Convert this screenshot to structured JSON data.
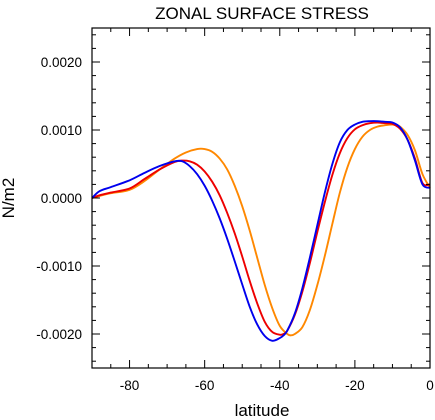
{
  "chart_data": {
    "type": "line",
    "title": "ZONAL SURFACE STRESS",
    "xlabel": "latitude",
    "ylabel": "N/m2",
    "xlim": [
      -90,
      0
    ],
    "ylim": [
      -0.0025,
      0.0025
    ],
    "x_ticks": [
      {
        "value": -80,
        "label": "-80"
      },
      {
        "value": -60,
        "label": "-60"
      },
      {
        "value": -40,
        "label": "-40"
      },
      {
        "value": -20,
        "label": "-20"
      },
      {
        "value": 0,
        "label": "0"
      }
    ],
    "y_ticks": [
      {
        "value": -0.002,
        "label": "-0.0020"
      },
      {
        "value": -0.001,
        "label": "-0.0010"
      },
      {
        "value": 0.0,
        "label": "0.0000"
      },
      {
        "value": 0.001,
        "label": "0.0010"
      },
      {
        "value": 0.002,
        "label": "0.0020"
      }
    ],
    "grid": false,
    "series": [
      {
        "color": "#ff8800",
        "x": [
          -90,
          -88,
          -85,
          -80,
          -76,
          -72,
          -68,
          -65,
          -62,
          -60,
          -58,
          -56,
          -54,
          -52,
          -50,
          -48,
          -46,
          -44,
          -42,
          -40,
          -38,
          -37,
          -36,
          -34,
          -32,
          -30,
          -28,
          -26,
          -24,
          -22,
          -20,
          -18,
          -16,
          -14,
          -12,
          -10,
          -9,
          -8,
          -6,
          -4,
          -2,
          0
        ],
        "y": [
          0.0,
          3e-05,
          7e-05,
          0.00012,
          0.00025,
          0.00042,
          0.00058,
          0.00067,
          0.00072,
          0.00072,
          0.00068,
          0.00058,
          0.00042,
          0.00018,
          -0.00012,
          -0.00048,
          -0.00088,
          -0.00128,
          -0.00162,
          -0.00188,
          -0.002,
          -0.00202,
          -0.002,
          -0.0019,
          -0.00165,
          -0.00128,
          -0.00085,
          -0.00038,
          8e-05,
          0.00045,
          0.00072,
          0.0009,
          0.001,
          0.00105,
          0.00107,
          0.00108,
          0.00107,
          0.00105,
          0.00093,
          0.0007,
          0.00035,
          0.00015
        ]
      },
      {
        "color": "#ee0000",
        "x": [
          -90,
          -88,
          -85,
          -80,
          -76,
          -72,
          -68,
          -66,
          -64,
          -62,
          -60,
          -58,
          -56,
          -54,
          -52,
          -50,
          -48,
          -46,
          -44,
          -42,
          -40,
          -39,
          -38,
          -36,
          -34,
          -32,
          -30,
          -28,
          -26,
          -24,
          -22,
          -20,
          -18,
          -16,
          -14,
          -12,
          -10,
          -8,
          -6,
          -4,
          -2,
          0
        ],
        "y": [
          0.0,
          4e-05,
          8e-05,
          0.00014,
          0.00028,
          0.00042,
          0.00053,
          0.00055,
          0.00054,
          0.00049,
          0.00039,
          0.00024,
          4e-05,
          -0.00022,
          -0.00052,
          -0.00086,
          -0.00122,
          -0.00155,
          -0.00182,
          -0.00197,
          -0.00201,
          -0.002,
          -0.00195,
          -0.00172,
          -0.00138,
          -0.00096,
          -0.0005,
          -6e-05,
          0.00034,
          0.00066,
          0.00088,
          0.00101,
          0.00107,
          0.0011,
          0.00111,
          0.0011,
          0.00109,
          0.00102,
          0.00086,
          0.00058,
          0.00022,
          0.0002
        ]
      },
      {
        "color": "#0000ee",
        "x": [
          -90,
          -88,
          -85,
          -80,
          -76,
          -72,
          -68,
          -66,
          -64,
          -62,
          -60,
          -58,
          -56,
          -54,
          -52,
          -50,
          -48,
          -46,
          -44,
          -42,
          -40,
          -39,
          -38,
          -36,
          -34,
          -32,
          -30,
          -28,
          -26,
          -24,
          -22,
          -20,
          -18,
          -16,
          -14,
          -12,
          -10,
          -8,
          -6,
          -4,
          -2,
          0
        ],
        "y": [
          0.0,
          0.0001,
          0.00016,
          0.00026,
          0.00037,
          0.00047,
          0.00054,
          0.00054,
          0.00047,
          0.00035,
          0.00018,
          -4e-05,
          -0.0003,
          -0.0006,
          -0.00093,
          -0.00127,
          -0.0016,
          -0.00186,
          -0.00203,
          -0.0021,
          -0.00206,
          -0.00202,
          -0.00195,
          -0.0017,
          -0.00133,
          -0.00088,
          -0.0004,
          8e-05,
          0.0005,
          0.00082,
          0.001,
          0.00108,
          0.00112,
          0.00113,
          0.00113,
          0.00112,
          0.00111,
          0.00104,
          0.00086,
          0.00055,
          0.0002,
          0.00015
        ]
      }
    ]
  }
}
